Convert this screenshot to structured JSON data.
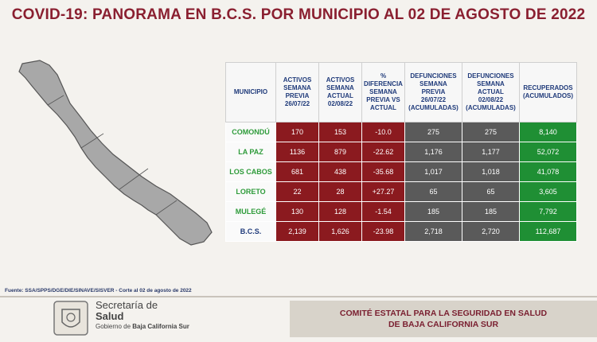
{
  "title": "COVID-19: PANORAMA EN B.C.S. POR MUNICIPIO AL 02 DE AGOSTO DE 2022",
  "table": {
    "headers": [
      [
        "MUNICIPIO"
      ],
      [
        "ACTIVOS",
        "SEMANA",
        "PREVIA",
        "26/07/22"
      ],
      [
        "ACTIVOS",
        "SEMANA",
        "ACTUAL",
        "02/08/22"
      ],
      [
        "%",
        "DIFERENCIA",
        "SEMANA",
        "PREVIA VS",
        "ACTUAL"
      ],
      [
        "DEFUNCIONES",
        "SEMANA",
        "PREVIA",
        "26/07/22",
        "(ACUMULADAS)"
      ],
      [
        "DEFUNCIONES",
        "SEMANA",
        "ACTUAL",
        "02/08/22",
        "(ACUMULADAS)"
      ],
      [
        "RECUPERADOS",
        "(ACUMULADOS)"
      ]
    ],
    "rows": [
      {
        "municipio": "COMONDÚ",
        "activos_previa": "170",
        "activos_actual": "153",
        "diferencia": "-10.0",
        "def_previa": "275",
        "def_actual": "275",
        "recuperados": "8,140"
      },
      {
        "municipio": "LA PAZ",
        "activos_previa": "1136",
        "activos_actual": "879",
        "diferencia": "-22.62",
        "def_previa": "1,176",
        "def_actual": "1,177",
        "recuperados": "52,072"
      },
      {
        "municipio": "LOS CABOS",
        "activos_previa": "681",
        "activos_actual": "438",
        "diferencia": "-35.68",
        "def_previa": "1,017",
        "def_actual": "1,018",
        "recuperados": "41,078"
      },
      {
        "municipio": "LORETO",
        "activos_previa": "22",
        "activos_actual": "28",
        "diferencia": "+27.27",
        "def_previa": "65",
        "def_actual": "65",
        "recuperados": "3,605"
      },
      {
        "municipio": "MULEGÉ",
        "activos_previa": "130",
        "activos_actual": "128",
        "diferencia": "-1.54",
        "def_previa": "185",
        "def_actual": "185",
        "recuperados": "7,792"
      },
      {
        "municipio": "B.C.S.",
        "activos_previa": "2,139",
        "activos_actual": "1,626",
        "diferencia": "-23.98",
        "def_previa": "2,718",
        "def_actual": "2,720",
        "recuperados": "112,687"
      }
    ]
  },
  "source": "Fuente: SSA/SPPS/DGE/DIE/SINAVE/SISVER - Corte al 02 de agosto de 2022",
  "footer": {
    "org_line1": "Secretaría de",
    "org_line2": "Salud",
    "org_line3_pre": "Gobierno de ",
    "org_line3_bold": "Baja California Sur",
    "comite_line1": "COMITÉ ESTATAL PARA LA SEGURIDAD EN SALUD",
    "comite_line2": "DE BAJA CALIFORNIA SUR"
  },
  "colors": {
    "title": "#8a1f30",
    "activos": "#8b1a1f",
    "defunciones": "#5a5a5a",
    "recuperados": "#1f8f34",
    "municipio_text": "#2e9b3a"
  },
  "icons": [
    "baja-california-sur-map",
    "government-seal-logo"
  ]
}
